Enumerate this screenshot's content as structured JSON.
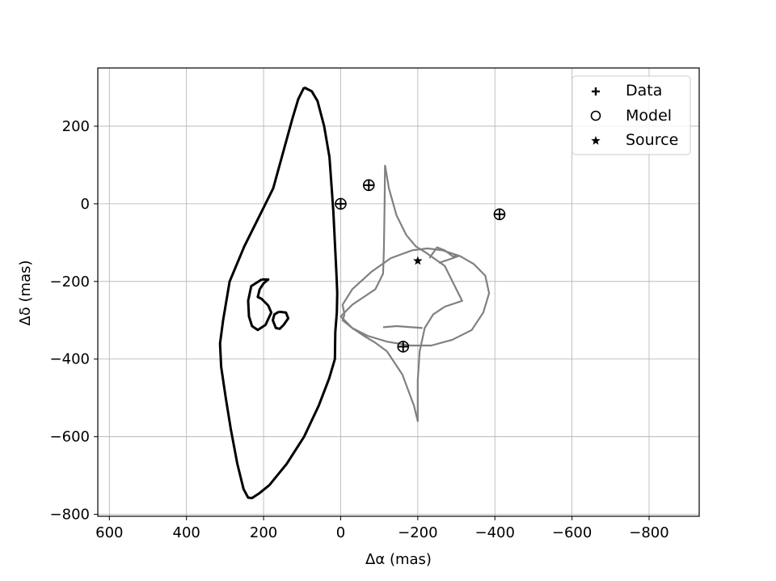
{
  "chart_data": {
    "type": "line",
    "title": "",
    "xlabel": "Δα (mas)",
    "ylabel": "Δδ (mas)",
    "xlim": [
      630,
      -930
    ],
    "ylim": [
      -805,
      350
    ],
    "x_inverted": true,
    "grid": true,
    "xticks": [
      600,
      400,
      200,
      0,
      -200,
      -400,
      -600,
      -800
    ],
    "xtick_labels": [
      "600",
      "400",
      "200",
      "0",
      "−200",
      "−400",
      "−600",
      "−800"
    ],
    "yticks": [
      200,
      0,
      -200,
      -400,
      -600,
      -800
    ],
    "ytick_labels": [
      "200",
      "0",
      "−200",
      "−400",
      "−600",
      "−800"
    ],
    "legend": {
      "placement": "top-right",
      "entries": [
        {
          "label": "Data",
          "marker": "plus"
        },
        {
          "label": "Model",
          "marker": "circle"
        },
        {
          "label": "Source",
          "marker": "star"
        }
      ]
    },
    "critical_curves": [
      {
        "color": "#000000",
        "points": [
          [
            95,
            300
          ],
          [
            75,
            290
          ],
          [
            60,
            265
          ],
          [
            43,
            200
          ],
          [
            29,
            120
          ],
          [
            24,
            50
          ],
          [
            19,
            -20
          ],
          [
            15,
            -100
          ],
          [
            11,
            -180
          ],
          [
            9,
            -230
          ],
          [
            10,
            -280
          ],
          [
            14,
            -330
          ],
          [
            15,
            -400
          ],
          [
            30,
            -450
          ],
          [
            57,
            -520
          ],
          [
            95,
            -600
          ],
          [
            140,
            -670
          ],
          [
            185,
            -725
          ],
          [
            210,
            -745
          ],
          [
            230,
            -758
          ],
          [
            240,
            -757
          ],
          [
            252,
            -735
          ],
          [
            268,
            -670
          ],
          [
            285,
            -580
          ],
          [
            298,
            -500
          ],
          [
            310,
            -420
          ],
          [
            313,
            -360
          ],
          [
            305,
            -300
          ],
          [
            288,
            -200
          ],
          [
            250,
            -110
          ],
          [
            215,
            -40
          ],
          [
            175,
            40
          ],
          [
            150,
            130
          ],
          [
            125,
            220
          ],
          [
            110,
            270
          ],
          [
            95,
            300
          ]
        ]
      },
      {
        "color": "#000000",
        "points": [
          [
            205,
            -195
          ],
          [
            232,
            -212
          ],
          [
            240,
            -250
          ],
          [
            238,
            -290
          ],
          [
            230,
            -315
          ],
          [
            215,
            -325
          ],
          [
            195,
            -312
          ],
          [
            180,
            -280
          ],
          [
            188,
            -262
          ],
          [
            205,
            -245
          ],
          [
            215,
            -240
          ],
          [
            210,
            -220
          ],
          [
            200,
            -205
          ],
          [
            188,
            -195
          ],
          [
            205,
            -195
          ]
        ]
      },
      {
        "color": "#000000",
        "points": [
          [
            160,
            -278
          ],
          [
            172,
            -285
          ],
          [
            176,
            -300
          ],
          [
            168,
            -320
          ],
          [
            158,
            -322
          ],
          [
            148,
            -312
          ],
          [
            136,
            -295
          ],
          [
            142,
            -280
          ],
          [
            160,
            -278
          ]
        ]
      }
    ],
    "caustics": [
      {
        "color": "#808080",
        "points": [
          [
            -115,
            100
          ],
          [
            -125,
            40
          ],
          [
            -145,
            -30
          ],
          [
            -170,
            -80
          ],
          [
            -195,
            -110
          ],
          [
            -220,
            -125
          ],
          [
            -270,
            -160
          ],
          [
            -300,
            -220
          ],
          [
            -315,
            -250
          ],
          [
            -270,
            -265
          ],
          [
            -240,
            -285
          ],
          [
            -218,
            -320
          ],
          [
            -205,
            -380
          ],
          [
            -200,
            -455
          ],
          [
            -200,
            -560
          ],
          [
            -190,
            -520
          ],
          [
            -160,
            -440
          ],
          [
            -120,
            -380
          ],
          [
            -90,
            -358
          ],
          [
            -60,
            -340
          ],
          [
            -30,
            -320
          ],
          [
            0,
            -290
          ],
          [
            -30,
            -260
          ],
          [
            -60,
            -240
          ],
          [
            -90,
            -220
          ],
          [
            -110,
            -180
          ],
          [
            -112,
            -120
          ],
          [
            -114,
            0
          ],
          [
            -115,
            100
          ]
        ]
      },
      {
        "color": "#808080",
        "points": [
          [
            -10,
            -285
          ],
          [
            -5,
            -260
          ],
          [
            -30,
            -220
          ],
          [
            -80,
            -175
          ],
          [
            -130,
            -140
          ],
          [
            -185,
            -120
          ],
          [
            -225,
            -115
          ],
          [
            -265,
            -120
          ],
          [
            -310,
            -135
          ],
          [
            -345,
            -155
          ],
          [
            -375,
            -185
          ],
          [
            -385,
            -230
          ],
          [
            -370,
            -280
          ],
          [
            -340,
            -325
          ],
          [
            -290,
            -350
          ],
          [
            -235,
            -365
          ],
          [
            -180,
            -365
          ],
          [
            -120,
            -355
          ],
          [
            -70,
            -340
          ],
          [
            -30,
            -320
          ],
          [
            -5,
            -300
          ],
          [
            -10,
            -285
          ]
        ]
      },
      {
        "color": "#808080",
        "points": [
          [
            -110,
            -318
          ],
          [
            -145,
            -315
          ],
          [
            -185,
            -318
          ],
          [
            -212,
            -320
          ]
        ]
      },
      {
        "color": "#808080",
        "points": [
          [
            -230,
            -140
          ],
          [
            -250,
            -112
          ],
          [
            -270,
            -120
          ],
          [
            -290,
            -135
          ],
          [
            -305,
            -135
          ],
          [
            -285,
            -142
          ],
          [
            -255,
            -152
          ]
        ]
      }
    ],
    "data_points": [
      [
        0,
        0
      ],
      [
        -73,
        48
      ],
      [
        -412,
        -27
      ],
      [
        -162,
        -368
      ]
    ],
    "model_points": [
      [
        0,
        0
      ],
      [
        -73,
        48
      ],
      [
        -412,
        -27
      ],
      [
        -162,
        -368
      ]
    ],
    "source_points": [
      [
        -200,
        -147
      ]
    ]
  }
}
